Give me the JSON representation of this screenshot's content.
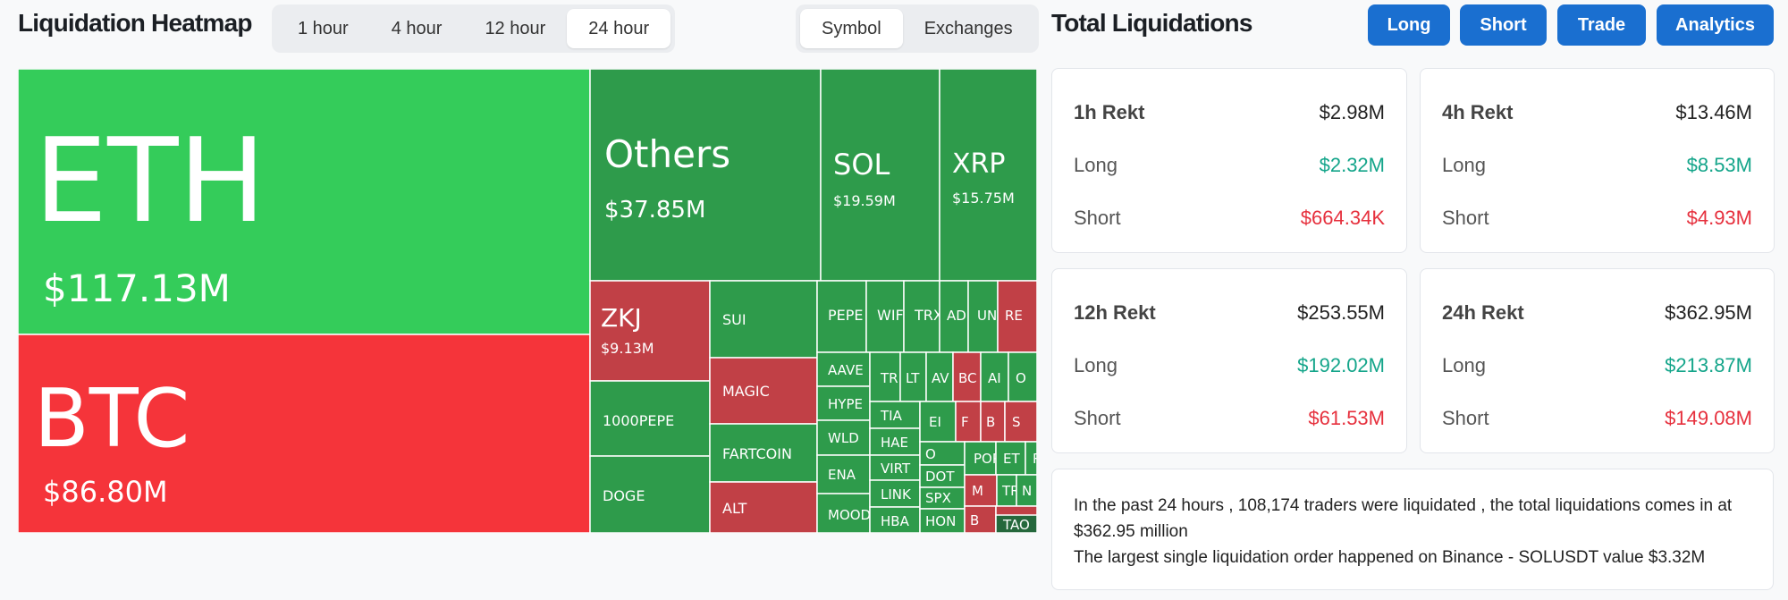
{
  "header": {
    "title": "Liquidation Heatmap",
    "time_tabs": [
      {
        "label": "1 hour",
        "active": false
      },
      {
        "label": "4 hour",
        "active": false
      },
      {
        "label": "12 hour",
        "active": false
      },
      {
        "label": "24 hour",
        "active": true
      }
    ],
    "group_tabs": [
      {
        "label": "Symbol",
        "active": true
      },
      {
        "label": "Exchanges",
        "active": false
      }
    ]
  },
  "right_panel": {
    "title": "Total Liquidations",
    "buttons": [
      "Long",
      "Short",
      "Trade",
      "Analytics"
    ],
    "cards": [
      {
        "period": "1h Rekt",
        "total": "$2.98M",
        "long_label": "Long",
        "long": "$2.32M",
        "short_label": "Short",
        "short": "$664.34K"
      },
      {
        "period": "4h Rekt",
        "total": "$13.46M",
        "long_label": "Long",
        "long": "$8.53M",
        "short_label": "Short",
        "short": "$4.93M"
      },
      {
        "period": "12h Rekt",
        "total": "$253.55M",
        "long_label": "Long",
        "long": "$192.02M",
        "short_label": "Short",
        "short": "$61.53M"
      },
      {
        "period": "24h Rekt",
        "total": "$362.95M",
        "long_label": "Long",
        "long": "$213.87M",
        "short_label": "Short",
        "short": "$149.08M"
      }
    ],
    "summary_line1": "In the past 24 hours , 108,174 traders were liquidated , the total liquidations comes in at $362.95 million",
    "summary_line2": "The largest single liquidation order happened on Binance - SOLUSDT value $3.32M"
  },
  "colors": {
    "long_bright": "#34cc5a",
    "long": "#2e9b4b",
    "long_dark": "#25683c",
    "short_bright": "#f5343a",
    "short": "#c14046",
    "accent": "#1a6fd0"
  },
  "heatmap": [
    {
      "symbol": "ETH",
      "value": "$117.13M",
      "side": "long_bright"
    },
    {
      "symbol": "BTC",
      "value": "$86.80M",
      "side": "short_bright"
    },
    {
      "symbol": "Others",
      "value": "$37.85M",
      "side": "long"
    },
    {
      "symbol": "SOL",
      "value": "$19.59M",
      "side": "long"
    },
    {
      "symbol": "XRP",
      "value": "$15.75M",
      "side": "long"
    },
    {
      "symbol": "ZKJ",
      "value": "$9.13M",
      "side": "short"
    },
    {
      "symbol": "SUI",
      "value": "",
      "side": "long"
    },
    {
      "symbol": "1000PEPE",
      "value": "",
      "side": "long"
    },
    {
      "symbol": "DOGE",
      "value": "",
      "side": "long"
    },
    {
      "symbol": "MAGIC",
      "value": "",
      "side": "short"
    },
    {
      "symbol": "FARTCOIN",
      "value": "",
      "side": "long"
    },
    {
      "symbol": "ALT",
      "value": "",
      "side": "short"
    },
    {
      "symbol": "PEPE",
      "value": "",
      "side": "long"
    },
    {
      "symbol": "WIF",
      "value": "",
      "side": "long"
    },
    {
      "symbol": "TRX",
      "value": "",
      "side": "long"
    },
    {
      "symbol": "AD",
      "value": "",
      "side": "long"
    },
    {
      "symbol": "UN",
      "value": "",
      "side": "long"
    },
    {
      "symbol": "RE",
      "value": "",
      "side": "short"
    },
    {
      "symbol": "AAVE",
      "value": "",
      "side": "long"
    },
    {
      "symbol": "HYPE",
      "value": "",
      "side": "long"
    },
    {
      "symbol": "WLD",
      "value": "",
      "side": "long"
    },
    {
      "symbol": "ENA",
      "value": "",
      "side": "long"
    },
    {
      "symbol": "MOOD",
      "value": "",
      "side": "long"
    },
    {
      "symbol": "TR",
      "value": "",
      "side": "long"
    },
    {
      "symbol": "LT",
      "value": "",
      "side": "long"
    },
    {
      "symbol": "AV",
      "value": "",
      "side": "long"
    },
    {
      "symbol": "BC",
      "value": "",
      "side": "short"
    },
    {
      "symbol": "AI",
      "value": "",
      "side": "long"
    },
    {
      "symbol": "O",
      "value": "",
      "side": "long"
    },
    {
      "symbol": "TIA",
      "value": "",
      "side": "long"
    },
    {
      "symbol": "HAE",
      "value": "",
      "side": "long"
    },
    {
      "symbol": "VIRT",
      "value": "",
      "side": "long"
    },
    {
      "symbol": "LINK",
      "value": "",
      "side": "long"
    },
    {
      "symbol": "HBA",
      "value": "",
      "side": "long"
    },
    {
      "symbol": "EI",
      "value": "",
      "side": "long"
    },
    {
      "symbol": "F",
      "value": "",
      "side": "short"
    },
    {
      "symbol": "B",
      "value": "",
      "side": "short"
    },
    {
      "symbol": "S",
      "value": "",
      "side": "short"
    },
    {
      "symbol": "O",
      "value": "",
      "side": "long"
    },
    {
      "symbol": "DOT",
      "value": "",
      "side": "long"
    },
    {
      "symbol": "SPX",
      "value": "",
      "side": "long"
    },
    {
      "symbol": "HON",
      "value": "",
      "side": "long"
    },
    {
      "symbol": "POP",
      "value": "",
      "side": "long"
    },
    {
      "symbol": "ET",
      "value": "",
      "side": "long"
    },
    {
      "symbol": "RI",
      "value": "",
      "side": "long"
    },
    {
      "symbol": "M",
      "value": "",
      "side": "short"
    },
    {
      "symbol": "TR",
      "value": "",
      "side": "long"
    },
    {
      "symbol": "N",
      "value": "",
      "side": "long"
    },
    {
      "symbol": "B",
      "value": "",
      "side": "short"
    },
    {
      "symbol": "FO",
      "value": "",
      "side": "short"
    },
    {
      "symbol": "TAO",
      "value": "",
      "side": "long_dark"
    }
  ]
}
